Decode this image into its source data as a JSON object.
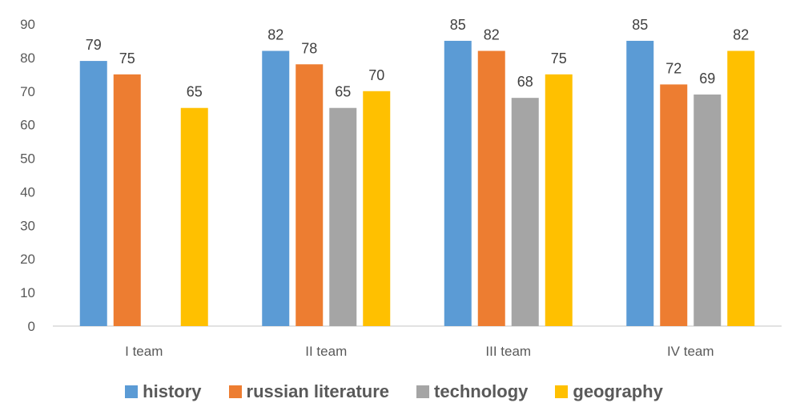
{
  "chart_data": {
    "type": "bar",
    "categories": [
      "I team",
      "II team",
      "III team",
      "IV team"
    ],
    "series": [
      {
        "name": "history",
        "color": "#5B9BD5",
        "values": [
          79,
          82,
          85,
          85
        ]
      },
      {
        "name": "russian literature",
        "color": "#ED7D31",
        "values": [
          75,
          78,
          82,
          72
        ]
      },
      {
        "name": "technology",
        "color": "#A5A5A5",
        "values": [
          null,
          65,
          68,
          69
        ]
      },
      {
        "name": "geography",
        "color": "#FFC000",
        "values": [
          65,
          70,
          75,
          82
        ]
      }
    ],
    "ylim": [
      0,
      90
    ],
    "yticks": [
      0,
      10,
      20,
      30,
      40,
      50,
      60,
      70,
      80,
      90
    ],
    "grid": false,
    "legend": "bottom",
    "data_labels": true
  }
}
